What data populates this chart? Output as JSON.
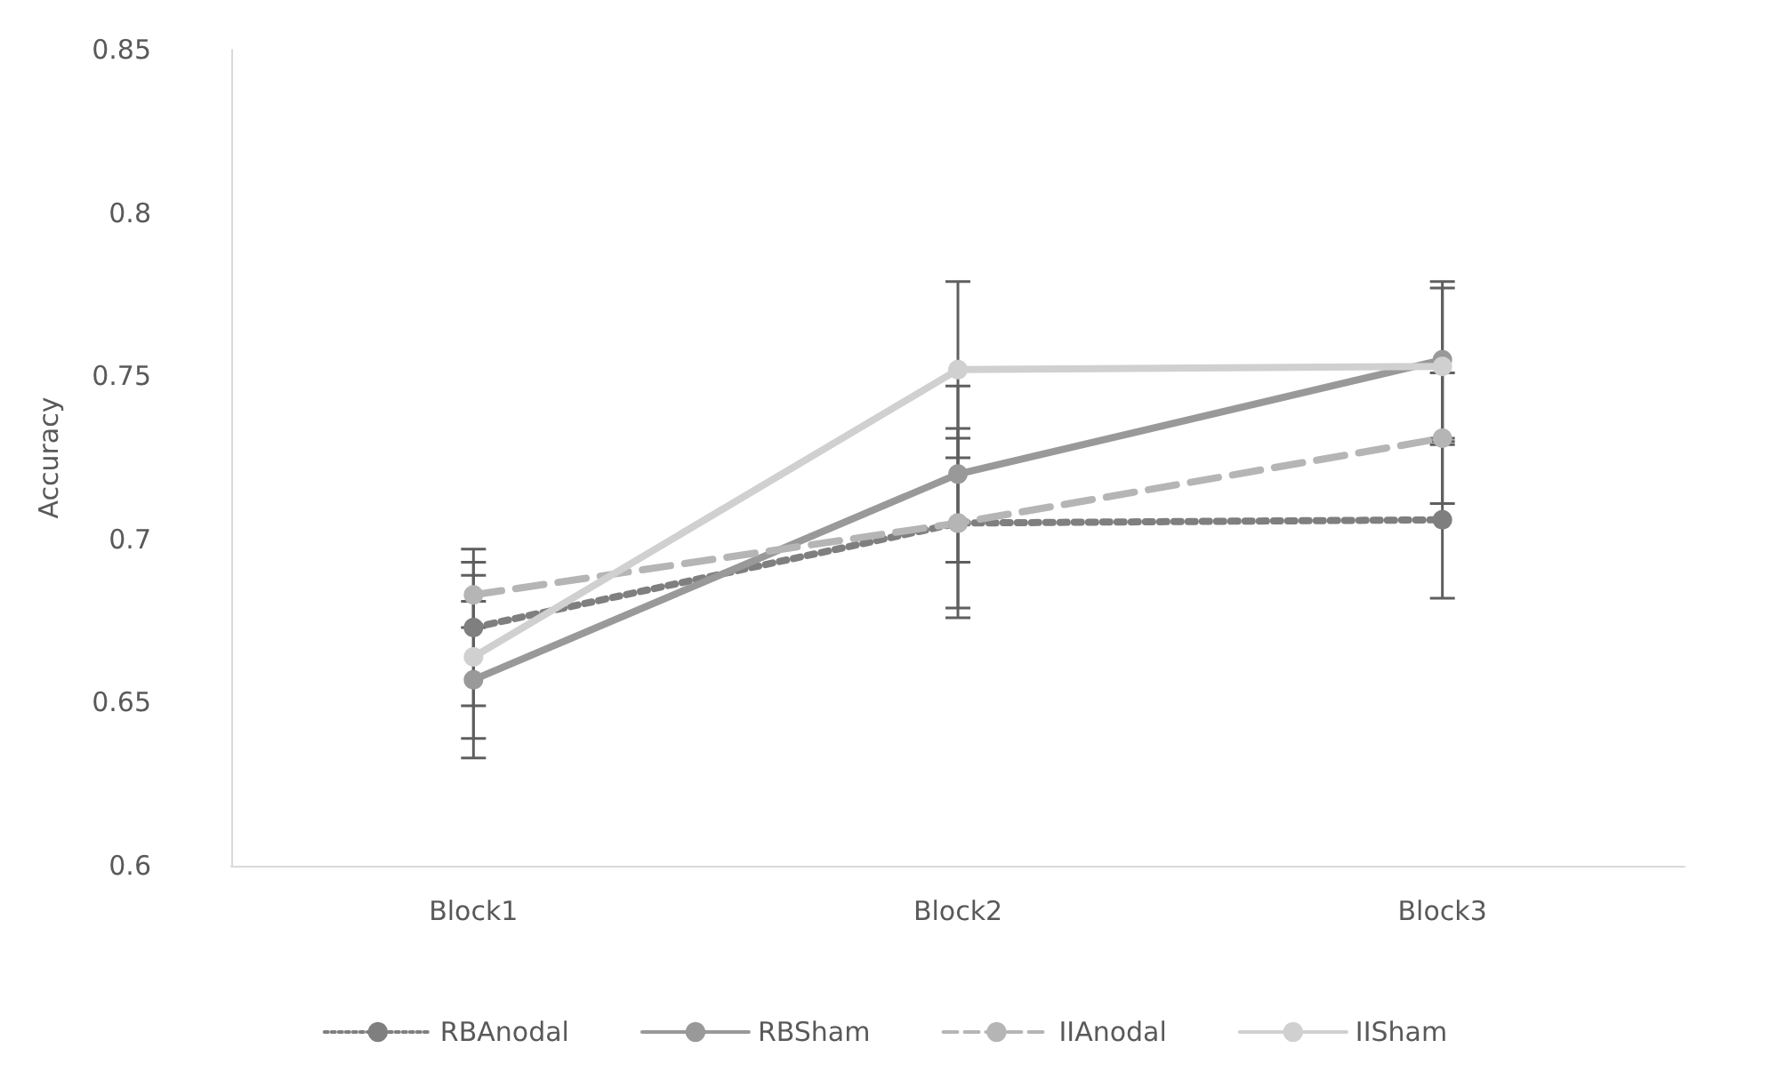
{
  "chart_data": {
    "type": "line",
    "ylabel": "Accuracy",
    "categories": [
      "Block1",
      "Block2",
      "Block3"
    ],
    "series": [
      {
        "name": "RBAnodal",
        "color": "#7f7f7f",
        "line_style": "dotted",
        "values": [
          0.673,
          0.705,
          0.706
        ],
        "errors": [
          0.024,
          0.026,
          0.024
        ]
      },
      {
        "name": "RBSham",
        "color": "#999999",
        "line_style": "solid",
        "values": [
          0.657,
          0.72,
          0.755
        ],
        "errors": [
          0.024,
          0.027,
          0.024
        ]
      },
      {
        "name": "IIAnodal",
        "color": "#b5b5b5",
        "line_style": "dashed",
        "values": [
          0.683,
          0.705,
          0.731
        ],
        "errors": [
          0.01,
          0.029,
          0.02
        ]
      },
      {
        "name": "IISham",
        "color": "#d0d0d0",
        "line_style": "solid",
        "values": [
          0.664,
          0.752,
          0.753
        ],
        "errors": [
          0.025,
          0.027,
          0.024
        ]
      }
    ],
    "ylim": [
      0.6,
      0.85
    ],
    "yticks": [
      0.6,
      0.65,
      0.7,
      0.75,
      0.8,
      0.85
    ],
    "marker": "circle",
    "grid": false,
    "legend": "bottom"
  }
}
